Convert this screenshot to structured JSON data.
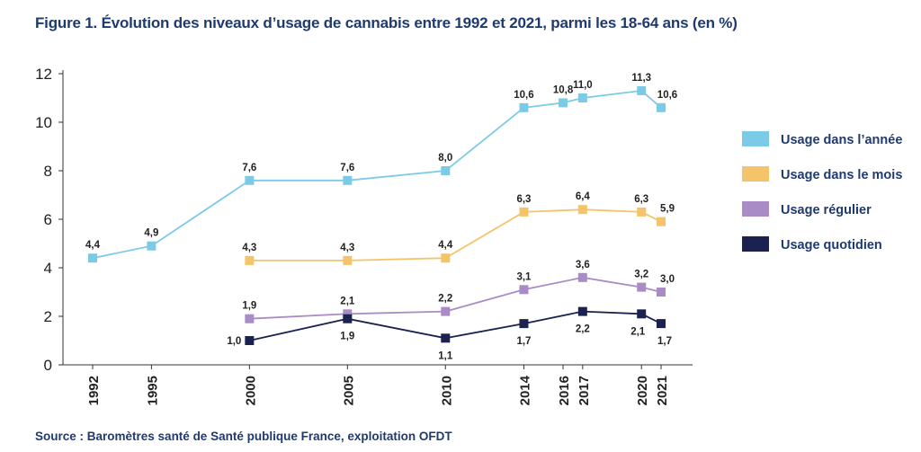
{
  "title": "Figure 1. Évolution des niveaux d’usage de cannabis entre 1992 et 2021, parmi les 18-64 ans (en %)",
  "source": "Source : Baromètres santé de Santé publique France, exploitation OFDT",
  "chart_data": {
    "type": "line",
    "title": "Figure 1. Évolution des niveaux d’usage de cannabis entre 1992 et 2021, parmi les 18-64 ans (en %)",
    "xlabel": "",
    "ylabel": "",
    "x_ticks": [
      "1992",
      "1995",
      "2000",
      "2005",
      "2010",
      "2014",
      "2016",
      "2017",
      "2020",
      "2021"
    ],
    "y_ticks": [
      "0",
      "2",
      "4",
      "6",
      "8",
      "10",
      "12"
    ],
    "ylim": [
      0,
      12
    ],
    "xlim": [
      1992,
      2021
    ],
    "grid": false,
    "legend_position": "right",
    "series": [
      {
        "name": "Usage dans l’année",
        "color": "#7ccbe6",
        "points": [
          {
            "x": 1992,
            "y": 4.4,
            "label": "4,4"
          },
          {
            "x": 1995,
            "y": 4.9,
            "label": "4,9"
          },
          {
            "x": 2000,
            "y": 7.6,
            "label": "7,6"
          },
          {
            "x": 2005,
            "y": 7.6,
            "label": "7,6"
          },
          {
            "x": 2010,
            "y": 8.0,
            "label": "8,0"
          },
          {
            "x": 2014,
            "y": 10.6,
            "label": "10,6"
          },
          {
            "x": 2016,
            "y": 10.8,
            "label": "10,8"
          },
          {
            "x": 2017,
            "y": 11.0,
            "label": "11,0"
          },
          {
            "x": 2020,
            "y": 11.3,
            "label": "11,3"
          },
          {
            "x": 2021,
            "y": 10.6,
            "label": "10,6"
          }
        ]
      },
      {
        "name": "Usage dans le mois",
        "color": "#f5c46a",
        "points": [
          {
            "x": 2000,
            "y": 4.3,
            "label": "4,3"
          },
          {
            "x": 2005,
            "y": 4.3,
            "label": "4,3"
          },
          {
            "x": 2010,
            "y": 4.4,
            "label": "4,4"
          },
          {
            "x": 2014,
            "y": 6.3,
            "label": "6,3"
          },
          {
            "x": 2017,
            "y": 6.4,
            "label": "6,4"
          },
          {
            "x": 2020,
            "y": 6.3,
            "label": "6,3"
          },
          {
            "x": 2021,
            "y": 5.9,
            "label": "5,9"
          }
        ]
      },
      {
        "name": "Usage régulier",
        "color": "#a98cc6",
        "points": [
          {
            "x": 2000,
            "y": 1.9,
            "label": "1,9"
          },
          {
            "x": 2005,
            "y": 2.1,
            "label": "2,1"
          },
          {
            "x": 2010,
            "y": 2.2,
            "label": "2,2"
          },
          {
            "x": 2014,
            "y": 3.1,
            "label": "3,1"
          },
          {
            "x": 2017,
            "y": 3.6,
            "label": "3,6"
          },
          {
            "x": 2020,
            "y": 3.2,
            "label": "3,2"
          },
          {
            "x": 2021,
            "y": 3.0,
            "label": "3,0"
          }
        ]
      },
      {
        "name": "Usage quotidien",
        "color": "#1b2250",
        "points": [
          {
            "x": 2000,
            "y": 1.0,
            "label": "1,0"
          },
          {
            "x": 2005,
            "y": 1.9,
            "label": "1,9"
          },
          {
            "x": 2010,
            "y": 1.1,
            "label": "1,1"
          },
          {
            "x": 2014,
            "y": 1.7,
            "label": "1,7"
          },
          {
            "x": 2017,
            "y": 2.2,
            "label": "2,2"
          },
          {
            "x": 2020,
            "y": 2.1,
            "label": "2,1"
          },
          {
            "x": 2021,
            "y": 1.7,
            "label": "1,7"
          }
        ]
      }
    ]
  }
}
